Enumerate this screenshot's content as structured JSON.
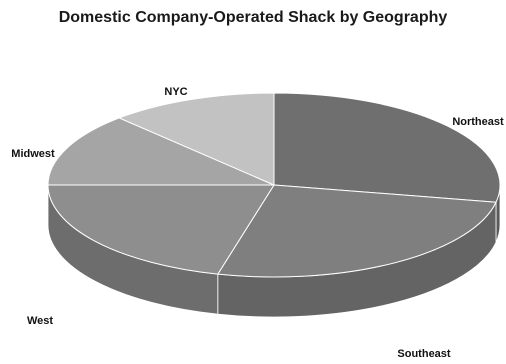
{
  "chart_data": {
    "type": "pie",
    "title": "Domestic Company-Operated Shack by Geography",
    "series": [
      {
        "categories": [
          "Northeast",
          "Southeast",
          "West",
          "Midwest",
          "NYC"
        ],
        "values": [
          28,
          26,
          21,
          13,
          12
        ]
      }
    ],
    "style": "3d",
    "legend": "none",
    "colors": [
      "#6f6f6f",
      "#7f7f7f",
      "#8e8e8e",
      "#a5a5a5",
      "#c2c2c2"
    ],
    "side_colors": [
      "#5a5a5a",
      "#646464",
      "#6d6d6d",
      "#7c7c7c",
      "#8f8f8f"
    ]
  }
}
